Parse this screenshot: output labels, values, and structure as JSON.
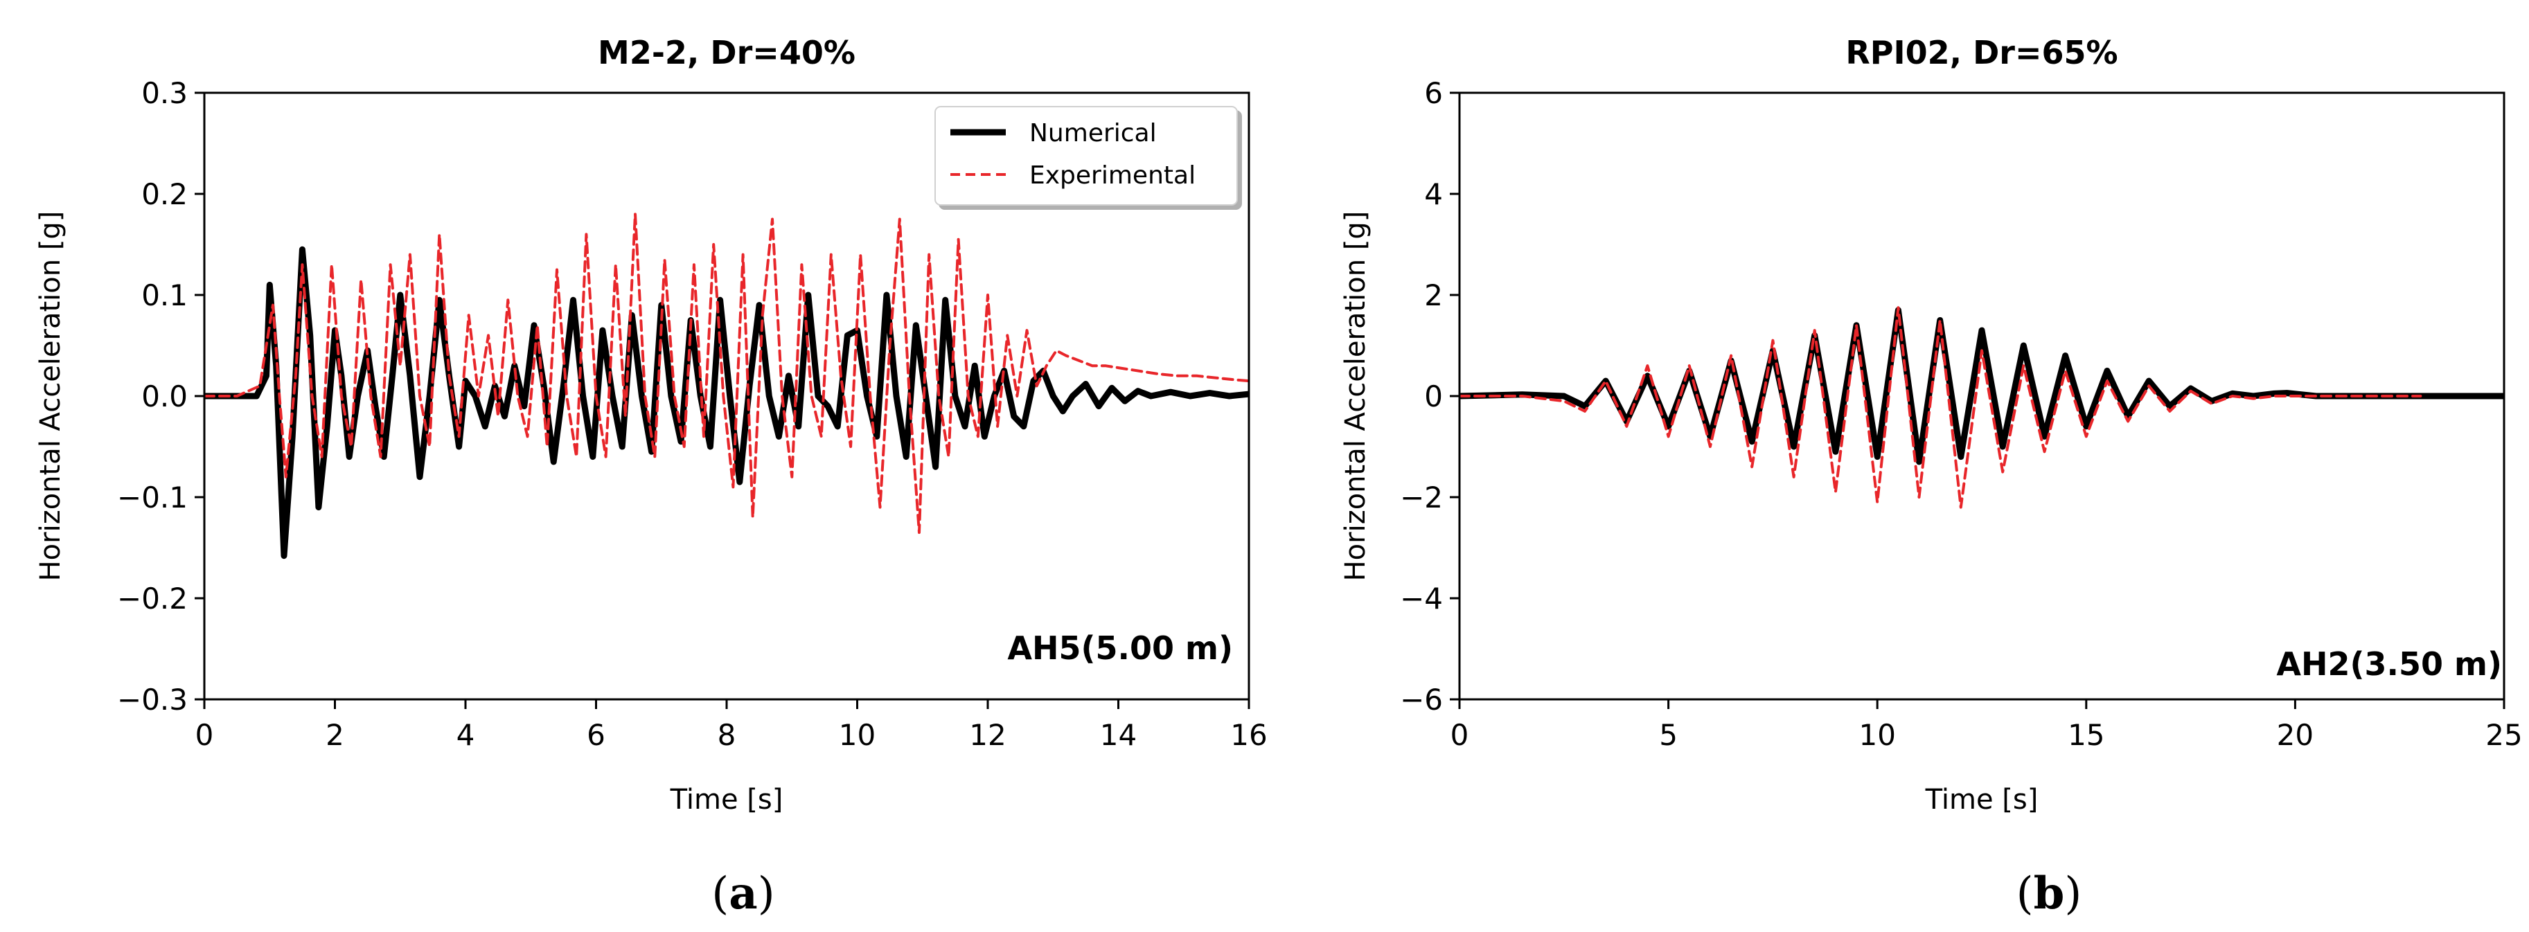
{
  "chart_data": [
    {
      "type": "line",
      "title": "M2-2, Dr=40%",
      "xlabel": "Time [s]",
      "ylabel": "Horizontal Acceleration [g]",
      "xlim": [
        0,
        16
      ],
      "ylim": [
        -0.3,
        0.3
      ],
      "xticks": [
        0,
        2,
        4,
        6,
        8,
        10,
        12,
        14,
        16
      ],
      "xtick_labels": [
        "0",
        "2",
        "4",
        "6",
        "8",
        "10",
        "12",
        "14",
        "16"
      ],
      "yticks": [
        -0.3,
        -0.2,
        -0.1,
        0.0,
        0.1,
        0.2,
        0.3
      ],
      "ytick_labels": [
        "−0.3",
        "−0.2",
        "−0.1",
        "0.0",
        "0.1",
        "0.2",
        "0.3"
      ],
      "legend": {
        "position": "top-right",
        "entries": [
          "Numerical",
          "Experimental"
        ]
      },
      "annotation": "AH5(5.00 m)",
      "panel_label": "(a)",
      "series": [
        {
          "name": "Numerical",
          "color": "#000000",
          "style": "solid",
          "x": [
            0,
            0.5,
            0.8,
            0.95,
            1.0,
            1.1,
            1.22,
            1.35,
            1.5,
            1.62,
            1.75,
            1.88,
            2.0,
            2.1,
            2.22,
            2.35,
            2.5,
            2.62,
            2.75,
            2.88,
            3.0,
            3.15,
            3.3,
            3.45,
            3.6,
            3.75,
            3.9,
            4.0,
            4.15,
            4.3,
            4.45,
            4.6,
            4.75,
            4.9,
            5.05,
            5.2,
            5.35,
            5.5,
            5.65,
            5.8,
            5.95,
            6.1,
            6.25,
            6.4,
            6.55,
            6.7,
            6.85,
            7.0,
            7.15,
            7.3,
            7.45,
            7.6,
            7.75,
            7.9,
            8.05,
            8.2,
            8.35,
            8.5,
            8.65,
            8.8,
            8.95,
            9.1,
            9.25,
            9.4,
            9.55,
            9.7,
            9.85,
            10.0,
            10.15,
            10.3,
            10.45,
            10.6,
            10.75,
            10.9,
            11.05,
            11.2,
            11.35,
            11.5,
            11.65,
            11.8,
            11.95,
            12.1,
            12.25,
            12.4,
            12.55,
            12.7,
            12.85,
            13.0,
            13.15,
            13.3,
            13.5,
            13.7,
            13.9,
            14.1,
            14.3,
            14.5,
            14.8,
            15.1,
            15.4,
            15.7,
            16.0
          ],
          "y": [
            0.0,
            0.0,
            0.0,
            0.02,
            0.11,
            0.03,
            -0.158,
            -0.04,
            0.145,
            0.06,
            -0.11,
            -0.03,
            0.065,
            0.02,
            -0.06,
            0.0,
            0.045,
            -0.01,
            -0.06,
            0.02,
            0.1,
            0.02,
            -0.08,
            0.0,
            0.095,
            0.02,
            -0.05,
            0.015,
            0.0,
            -0.03,
            0.01,
            -0.02,
            0.03,
            -0.01,
            0.07,
            0.01,
            -0.065,
            0.01,
            0.095,
            0.0,
            -0.06,
            0.065,
            0.0,
            -0.05,
            0.08,
            0.0,
            -0.055,
            0.09,
            0.0,
            -0.045,
            0.075,
            0.0,
            -0.05,
            0.095,
            0.0,
            -0.085,
            0.01,
            0.09,
            0.0,
            -0.04,
            0.02,
            -0.03,
            0.1,
            0.0,
            -0.01,
            -0.03,
            0.06,
            0.065,
            0.0,
            -0.04,
            0.1,
            0.0,
            -0.06,
            0.07,
            0.0,
            -0.07,
            0.095,
            0.0,
            -0.03,
            0.03,
            -0.04,
            0.0,
            0.025,
            -0.02,
            -0.03,
            0.015,
            0.025,
            0.0,
            -0.015,
            0.0,
            0.012,
            -0.01,
            0.008,
            -0.005,
            0.005,
            0.0,
            0.004,
            0.0,
            0.003,
            0.0,
            0.002
          ]
        },
        {
          "name": "Experimental",
          "color": "#e8262a",
          "style": "dashed",
          "x": [
            0,
            0.5,
            0.85,
            0.95,
            1.05,
            1.15,
            1.25,
            1.4,
            1.5,
            1.65,
            1.8,
            1.95,
            2.1,
            2.25,
            2.4,
            2.55,
            2.7,
            2.85,
            3.0,
            3.15,
            3.3,
            3.45,
            3.6,
            3.75,
            3.9,
            4.05,
            4.2,
            4.35,
            4.5,
            4.65,
            4.8,
            4.95,
            5.1,
            5.25,
            5.4,
            5.55,
            5.7,
            5.85,
            6.0,
            6.15,
            6.3,
            6.45,
            6.6,
            6.75,
            6.9,
            7.05,
            7.2,
            7.35,
            7.5,
            7.65,
            7.8,
            7.95,
            8.1,
            8.25,
            8.4,
            8.55,
            8.7,
            8.85,
            9.0,
            9.15,
            9.3,
            9.45,
            9.6,
            9.75,
            9.9,
            10.05,
            10.2,
            10.35,
            10.5,
            10.65,
            10.8,
            10.95,
            11.1,
            11.25,
            11.4,
            11.55,
            11.7,
            11.85,
            12.0,
            12.15,
            12.3,
            12.45,
            12.6,
            12.75,
            12.9,
            13.05,
            13.2,
            13.4,
            13.6,
            13.8,
            14.0,
            14.3,
            14.6,
            14.9,
            15.2,
            15.5,
            15.8,
            16.0
          ],
          "y": [
            0.0,
            0.0,
            0.01,
            0.05,
            0.09,
            0.0,
            -0.08,
            0.02,
            0.13,
            0.0,
            -0.06,
            0.13,
            0.0,
            -0.05,
            0.115,
            0.0,
            -0.06,
            0.13,
            0.03,
            0.14,
            0.0,
            -0.05,
            0.16,
            0.02,
            -0.04,
            0.08,
            0.0,
            0.06,
            -0.02,
            0.095,
            0.0,
            -0.04,
            0.07,
            -0.05,
            0.125,
            0.0,
            -0.06,
            0.16,
            0.0,
            -0.06,
            0.13,
            -0.02,
            0.18,
            0.0,
            -0.06,
            0.135,
            0.0,
            -0.05,
            0.13,
            -0.04,
            0.15,
            0.0,
            -0.09,
            0.14,
            -0.12,
            0.08,
            0.175,
            0.0,
            -0.08,
            0.13,
            0.0,
            -0.04,
            0.14,
            0.02,
            -0.05,
            0.14,
            0.0,
            -0.11,
            0.05,
            0.175,
            0.0,
            -0.135,
            0.14,
            0.0,
            -0.06,
            0.155,
            0.0,
            -0.04,
            0.1,
            -0.03,
            0.06,
            0.0,
            0.065,
            0.01,
            0.03,
            0.045,
            0.04,
            0.035,
            0.03,
            0.03,
            0.028,
            0.025,
            0.022,
            0.02,
            0.02,
            0.018,
            0.016,
            0.015
          ]
        }
      ]
    },
    {
      "type": "line",
      "title": "RPI02, Dr=65%",
      "xlabel": "Time [s]",
      "ylabel": "Horizontal Acceleration [g]",
      "xlim": [
        0,
        25
      ],
      "ylim": [
        -6,
        6
      ],
      "xticks": [
        0,
        5,
        10,
        15,
        20,
        25
      ],
      "xtick_labels": [
        "0",
        "5",
        "10",
        "15",
        "20",
        "25"
      ],
      "yticks": [
        -6,
        -4,
        -2,
        0,
        2,
        4,
        6
      ],
      "ytick_labels": [
        "−6",
        "−4",
        "−2",
        "0",
        "2",
        "4",
        "6"
      ],
      "annotation": "AH2(3.50 m)",
      "panel_label": "(b)",
      "series": [
        {
          "name": "Numerical",
          "color": "#000000",
          "style": "solid",
          "x": [
            0,
            1.5,
            2.5,
            3.0,
            3.5,
            4.0,
            4.5,
            5.0,
            5.5,
            6.0,
            6.5,
            7.0,
            7.5,
            8.0,
            8.5,
            9.0,
            9.5,
            10.0,
            10.5,
            11.0,
            11.5,
            12.0,
            12.5,
            13.0,
            13.5,
            14.0,
            14.5,
            15.0,
            15.5,
            16.0,
            16.5,
            17.0,
            17.5,
            18.0,
            18.5,
            19.0,
            19.5,
            19.8,
            20.5,
            22.0,
            25.0
          ],
          "y": [
            0,
            0.03,
            0.0,
            -0.2,
            0.3,
            -0.5,
            0.4,
            -0.6,
            0.5,
            -0.8,
            0.7,
            -0.9,
            0.9,
            -1.0,
            1.2,
            -1.1,
            1.4,
            -1.2,
            1.7,
            -1.3,
            1.5,
            -1.2,
            1.3,
            -1.0,
            1.0,
            -0.8,
            0.8,
            -0.6,
            0.5,
            -0.4,
            0.3,
            -0.2,
            0.15,
            -0.1,
            0.05,
            0.0,
            0.05,
            0.06,
            0.0,
            0.0,
            0.0
          ]
        },
        {
          "name": "Experimental",
          "color": "#e8262a",
          "style": "dashed",
          "x": [
            0,
            1.5,
            2.5,
            3.0,
            3.5,
            4.0,
            4.5,
            5.0,
            5.5,
            6.0,
            6.5,
            7.0,
            7.5,
            8.0,
            8.5,
            9.0,
            9.5,
            10.0,
            10.5,
            11.0,
            11.5,
            12.0,
            12.5,
            13.0,
            13.5,
            14.0,
            14.5,
            15.0,
            15.5,
            16.0,
            16.5,
            17.0,
            17.5,
            18.0,
            18.5,
            19.0,
            19.5,
            20.0,
            21.0,
            23.0
          ],
          "y": [
            0,
            0.0,
            -0.1,
            -0.3,
            0.3,
            -0.6,
            0.6,
            -0.8,
            0.6,
            -1.0,
            0.8,
            -1.4,
            1.1,
            -1.6,
            1.3,
            -1.9,
            1.4,
            -2.1,
            1.75,
            -2.0,
            1.5,
            -2.2,
            0.9,
            -1.5,
            0.6,
            -1.1,
            0.5,
            -0.8,
            0.3,
            -0.5,
            0.2,
            -0.3,
            0.1,
            -0.15,
            0.0,
            -0.05,
            0.0,
            0.0,
            0.0,
            0.0
          ]
        }
      ]
    }
  ]
}
